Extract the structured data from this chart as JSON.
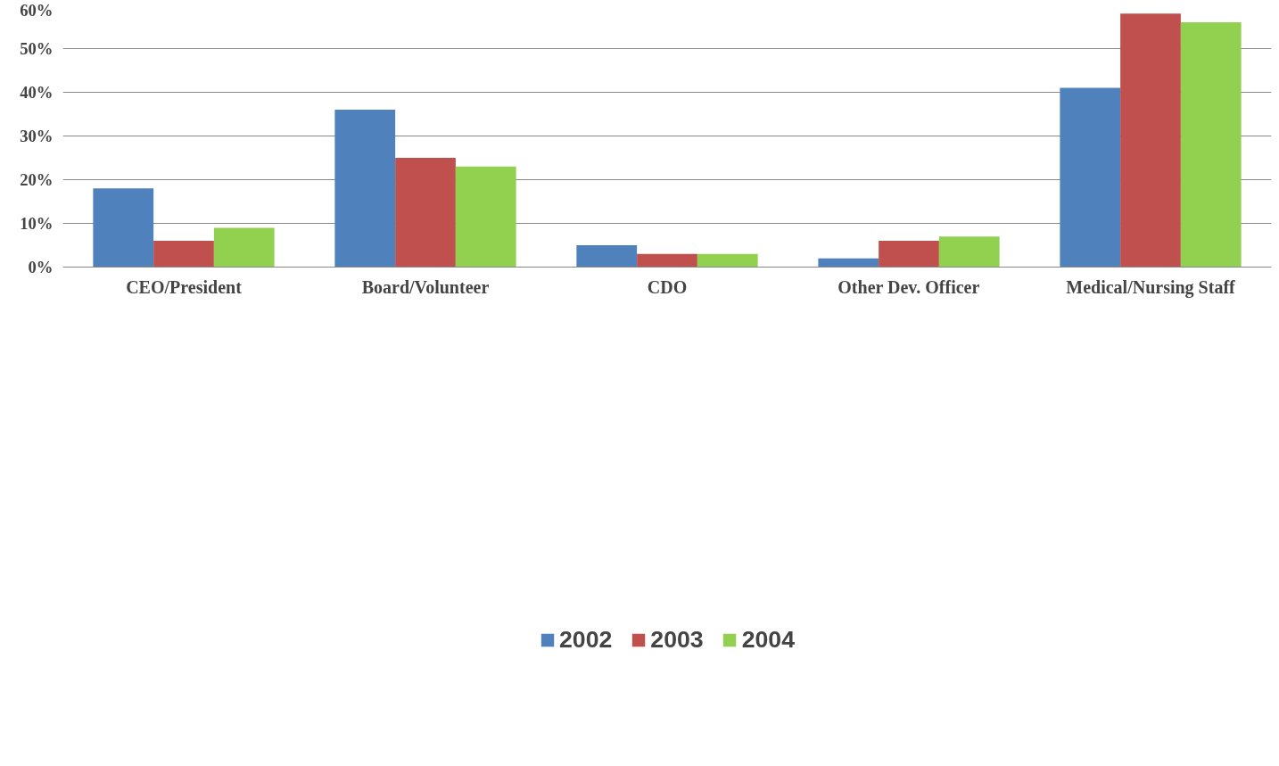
{
  "chart_data": {
    "type": "bar",
    "categories": [
      "CEO/President",
      "Board/Volunteer",
      "CDO",
      "Other Dev. Officer",
      "Medical/Nursing Staff"
    ],
    "series": [
      {
        "name": "2002",
        "color": "#4f81bd",
        "values": [
          18,
          36,
          5,
          2,
          41
        ]
      },
      {
        "name": "2003",
        "color": "#c0504d",
        "values": [
          6,
          25,
          3,
          6,
          58
        ]
      },
      {
        "name": "2004",
        "color": "#92d050",
        "values": [
          9,
          23,
          3,
          7,
          56
        ]
      }
    ],
    "ylim": [
      0,
      60
    ],
    "yticks": [
      {
        "value": 0,
        "label": "0%"
      },
      {
        "value": 10,
        "label": "10%"
      },
      {
        "value": 20,
        "label": "20%"
      },
      {
        "value": 30,
        "label": "30%"
      },
      {
        "value": 40,
        "label": "40%"
      },
      {
        "value": 50,
        "label": "50%"
      },
      {
        "value": 60,
        "label": "60%"
      }
    ],
    "grid": "y",
    "legend": "bottom"
  }
}
